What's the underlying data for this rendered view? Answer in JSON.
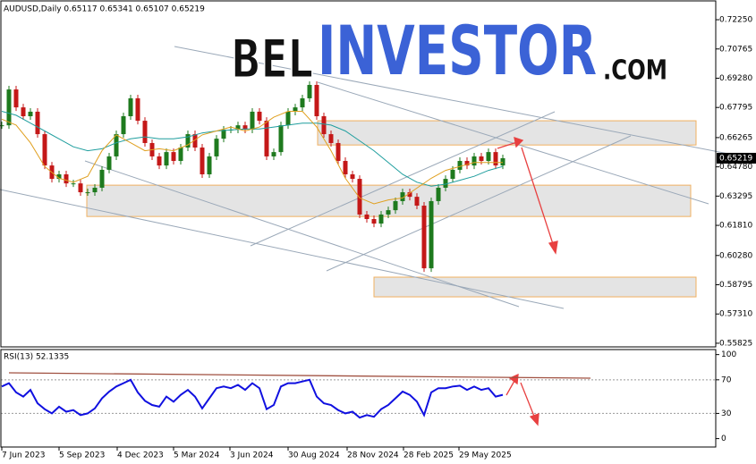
{
  "header": "AUDUSD,Daily  0.65117 0.65341 0.65107 0.65219",
  "watermark": {
    "part1": "BEL",
    "part2": "INVESTOR",
    "part3": ".COM"
  },
  "chart_data": [
    {
      "type": "candlestick",
      "ylim": [
        0.5564,
        0.7316
      ],
      "yticks": [
        {
          "value": 0.7225,
          "label": "0.72250"
        },
        {
          "value": 0.70765,
          "label": "0.70765"
        },
        {
          "value": 0.6928,
          "label": "0.69280"
        },
        {
          "value": 0.67795,
          "label": "0.67795"
        },
        {
          "value": 0.66265,
          "label": "0.66265"
        },
        {
          "value": 0.6478,
          "label": "0.64780"
        },
        {
          "value": 0.63295,
          "label": "0.63295"
        },
        {
          "value": 0.6181,
          "label": "0.61810"
        },
        {
          "value": 0.6028,
          "label": "0.60280"
        },
        {
          "value": 0.58795,
          "label": "0.58795"
        },
        {
          "value": 0.5731,
          "label": "0.57310"
        },
        {
          "value": 0.55825,
          "label": "0.55825"
        }
      ],
      "last_price": {
        "value": 0.65219,
        "label": "0.65219"
      },
      "x_labels": [
        "7 Jun 2023",
        "5 Sep 2023",
        "4 Dec 2023",
        "5 Mar 2024",
        "3 Jun 2024",
        "30 Aug 2024",
        "28 Nov 2024",
        "28 Feb 2025",
        "29 May 2025"
      ],
      "up_color": "#1e7a1e",
      "down_color": "#c41818",
      "values": [
        0.6689,
        0.6871,
        0.678,
        0.6735,
        0.6758,
        0.6644,
        0.6485,
        0.6417,
        0.644,
        0.6394,
        0.6394,
        0.6349,
        0.6349,
        0.6372,
        0.6463,
        0.6531,
        0.6644,
        0.6735,
        0.6826,
        0.6712,
        0.6599,
        0.6531,
        0.6485,
        0.6553,
        0.6508,
        0.6576,
        0.6644,
        0.6576,
        0.644,
        0.6531,
        0.6621,
        0.6667,
        0.6667,
        0.6689,
        0.6667,
        0.6758,
        0.6712,
        0.6531,
        0.6553,
        0.6689,
        0.6758,
        0.678,
        0.6826,
        0.6894,
        0.6735,
        0.6644,
        0.6599,
        0.6508,
        0.644,
        0.6417,
        0.6236,
        0.6213,
        0.619,
        0.6236,
        0.6258,
        0.6304,
        0.6349,
        0.6326,
        0.6281,
        0.5963,
        0.6304,
        0.6372,
        0.6417,
        0.6463,
        0.6508,
        0.6485,
        0.6531,
        0.6508,
        0.6553,
        0.6485,
        0.65219
      ],
      "series": [
        {
          "color": "#1f9e9e",
          "values": [
            0.676,
            0.674,
            0.67,
            0.666,
            0.662,
            0.658,
            0.656,
            0.657,
            0.66,
            0.662,
            0.663,
            0.662,
            0.662,
            0.663,
            0.665,
            0.666,
            0.6665,
            0.667,
            0.667,
            0.668,
            0.669,
            0.67,
            0.67,
            0.669,
            0.666,
            0.661,
            0.656,
            0.65,
            0.644,
            0.64,
            0.638,
            0.639,
            0.641,
            0.643,
            0.646,
            0.648
          ]
        },
        {
          "color": "#e0a020",
          "values": [
            0.672,
            0.669,
            0.66,
            0.648,
            0.642,
            0.64,
            0.643,
            0.656,
            0.664,
            0.66,
            0.656,
            0.657,
            0.656,
            0.659,
            0.664,
            0.666,
            0.668,
            0.666,
            0.668,
            0.673,
            0.676,
            0.676,
            0.668,
            0.656,
            0.642,
            0.632,
            0.629,
            0.631,
            0.632,
            0.637,
            0.642,
            0.646,
            0.648,
            0.65,
            0.65,
            0.65
          ]
        }
      ],
      "zones": [
        [
          0.6712,
          0.6589
        ],
        [
          0.6385,
          0.6226
        ],
        [
          0.5918,
          0.5818
        ]
      ]
    },
    {
      "type": "line",
      "title": "RSI(13) 52.1335",
      "ylim": [
        -10,
        106
      ],
      "yticks": [
        100,
        70,
        30,
        0
      ],
      "color": "#1010e0",
      "values": [
        62,
        66,
        55,
        50,
        58,
        42,
        35,
        30,
        38,
        32,
        34,
        28,
        30,
        36,
        48,
        56,
        62,
        66,
        70,
        55,
        45,
        40,
        38,
        50,
        44,
        52,
        58,
        50,
        36,
        48,
        60,
        62,
        60,
        64,
        58,
        66,
        60,
        35,
        40,
        62,
        66,
        66,
        68,
        70,
        50,
        42,
        40,
        34,
        30,
        32,
        25,
        28,
        26,
        35,
        40,
        48,
        56,
        52,
        44,
        28,
        55,
        60,
        60,
        62,
        63,
        58,
        62,
        58,
        60,
        50,
        52.1335
      ]
    }
  ]
}
